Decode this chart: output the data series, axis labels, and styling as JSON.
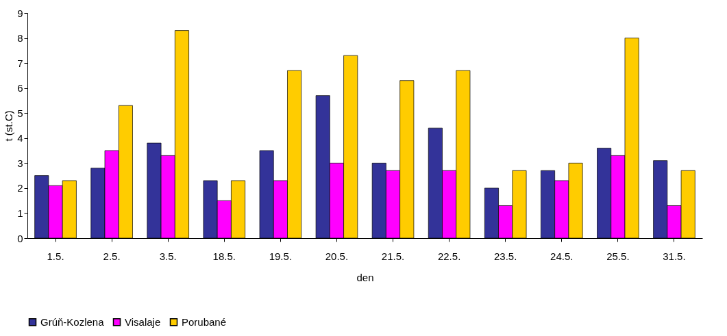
{
  "chart_data": {
    "type": "bar",
    "xlabel": "den",
    "ylabel": "t (st.C)",
    "categories": [
      "1.5.",
      "2.5.",
      "3.5.",
      "18.5.",
      "19.5.",
      "20.5.",
      "21.5.",
      "22.5.",
      "23.5.",
      "24.5.",
      "25.5.",
      "31.5."
    ],
    "series": [
      {
        "name": "Grúň-Kozlena",
        "color": "#333399",
        "values": [
          2.5,
          2.8,
          3.8,
          2.3,
          3.5,
          5.7,
          3.0,
          4.4,
          2.0,
          2.7,
          3.6,
          3.1
        ]
      },
      {
        "name": "Visalaje",
        "color": "#ff00ff",
        "values": [
          2.1,
          3.5,
          3.3,
          1.5,
          2.3,
          3.0,
          2.7,
          2.7,
          1.3,
          2.3,
          3.3,
          1.3
        ]
      },
      {
        "name": "Porubané",
        "color": "#ffcc00",
        "values": [
          2.3,
          5.3,
          8.3,
          2.3,
          6.7,
          7.3,
          6.3,
          6.7,
          2.7,
          3.0,
          8.0,
          2.7
        ]
      }
    ],
    "ylim": [
      0,
      9
    ],
    "yticks": [
      0,
      1,
      2,
      3,
      4,
      5,
      6,
      7,
      8,
      9
    ],
    "grid": false,
    "legend": "bottom"
  }
}
